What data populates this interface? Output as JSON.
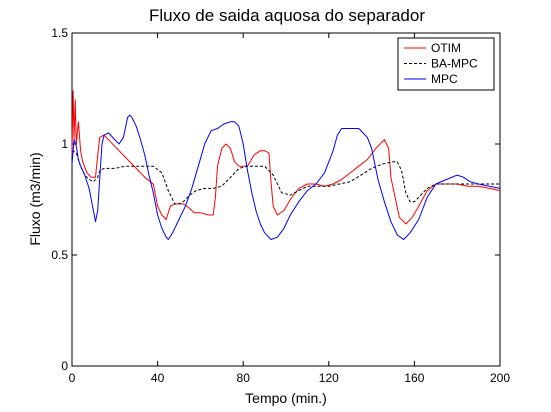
{
  "chart_data": {
    "type": "line",
    "title": "Fluxo de saida aquosa do separador",
    "xlabel": "Tempo (min.)",
    "ylabel": "Fluxo (m3/min)",
    "xlim": [
      0,
      200
    ],
    "ylim": [
      0,
      1.5
    ],
    "xticks": [
      0,
      40,
      80,
      120,
      160,
      200
    ],
    "yticks": [
      0,
      0.5,
      1,
      1.5
    ],
    "xtick_labels": [
      "0",
      "40",
      "80",
      "120",
      "160",
      "200"
    ],
    "ytick_labels": [
      "0",
      "0.5",
      "1",
      "1.5"
    ],
    "grid": false,
    "legend_position": "top-right",
    "series": [
      {
        "name": "OTIM",
        "color": "#ff0000",
        "dash": "solid",
        "points": [
          [
            0,
            0.95
          ],
          [
            0.5,
            1.24
          ],
          [
            1,
            1.02
          ],
          [
            1.5,
            1.2
          ],
          [
            2,
            1.0
          ],
          [
            3,
            1.1
          ],
          [
            4,
            0.97
          ],
          [
            5,
            0.92
          ],
          [
            7,
            0.87
          ],
          [
            9,
            0.85
          ],
          [
            11,
            0.85
          ],
          [
            12,
            0.95
          ],
          [
            13,
            1.03
          ],
          [
            15,
            1.04
          ],
          [
            18,
            1.01
          ],
          [
            22,
            0.97
          ],
          [
            26,
            0.93
          ],
          [
            30,
            0.89
          ],
          [
            34,
            0.85
          ],
          [
            38,
            0.82
          ],
          [
            40,
            0.72
          ],
          [
            42,
            0.68
          ],
          [
            44,
            0.66
          ],
          [
            46,
            0.72
          ],
          [
            48,
            0.73
          ],
          [
            52,
            0.73
          ],
          [
            55,
            0.71
          ],
          [
            57,
            0.69
          ],
          [
            60,
            0.69
          ],
          [
            64,
            0.68
          ],
          [
            66,
            0.68
          ],
          [
            67,
            0.76
          ],
          [
            68,
            0.9
          ],
          [
            70,
            0.98
          ],
          [
            72,
            1.0
          ],
          [
            74,
            0.98
          ],
          [
            76,
            0.92
          ],
          [
            78,
            0.9
          ],
          [
            80,
            0.9
          ],
          [
            82,
            0.9
          ],
          [
            85,
            0.95
          ],
          [
            88,
            0.97
          ],
          [
            90,
            0.97
          ],
          [
            92,
            0.96
          ],
          [
            93,
            0.83
          ],
          [
            94,
            0.72
          ],
          [
            96,
            0.68
          ],
          [
            99,
            0.7
          ],
          [
            102,
            0.75
          ],
          [
            106,
            0.8
          ],
          [
            110,
            0.82
          ],
          [
            114,
            0.82
          ],
          [
            118,
            0.81
          ],
          [
            122,
            0.82
          ],
          [
            126,
            0.84
          ],
          [
            130,
            0.87
          ],
          [
            134,
            0.9
          ],
          [
            138,
            0.93
          ],
          [
            142,
            0.98
          ],
          [
            146,
            1.02
          ],
          [
            148,
            0.98
          ],
          [
            149,
            0.85
          ],
          [
            151,
            0.76
          ],
          [
            153,
            0.67
          ],
          [
            156,
            0.64
          ],
          [
            159,
            0.67
          ],
          [
            162,
            0.72
          ],
          [
            166,
            0.79
          ],
          [
            170,
            0.82
          ],
          [
            175,
            0.82
          ],
          [
            180,
            0.82
          ],
          [
            185,
            0.81
          ],
          [
            190,
            0.81
          ],
          [
            195,
            0.8
          ],
          [
            200,
            0.79
          ]
        ]
      },
      {
        "name": "BA-MPC",
        "color": "#000000",
        "dash": "dashed",
        "points": [
          [
            0,
            0.97
          ],
          [
            2,
            0.96
          ],
          [
            4,
            0.9
          ],
          [
            6,
            0.86
          ],
          [
            8,
            0.84
          ],
          [
            10,
            0.83
          ],
          [
            12,
            0.85
          ],
          [
            13,
            0.88
          ],
          [
            15,
            0.89
          ],
          [
            20,
            0.89
          ],
          [
            25,
            0.9
          ],
          [
            30,
            0.9
          ],
          [
            35,
            0.9
          ],
          [
            38,
            0.9
          ],
          [
            42,
            0.87
          ],
          [
            45,
            0.79
          ],
          [
            48,
            0.73
          ],
          [
            50,
            0.73
          ],
          [
            52,
            0.74
          ],
          [
            55,
            0.77
          ],
          [
            58,
            0.79
          ],
          [
            62,
            0.8
          ],
          [
            66,
            0.8
          ],
          [
            70,
            0.81
          ],
          [
            74,
            0.85
          ],
          [
            78,
            0.89
          ],
          [
            82,
            0.9
          ],
          [
            86,
            0.9
          ],
          [
            90,
            0.9
          ],
          [
            94,
            0.86
          ],
          [
            98,
            0.78
          ],
          [
            102,
            0.77
          ],
          [
            106,
            0.79
          ],
          [
            110,
            0.81
          ],
          [
            115,
            0.81
          ],
          [
            120,
            0.81
          ],
          [
            125,
            0.82
          ],
          [
            130,
            0.83
          ],
          [
            135,
            0.86
          ],
          [
            140,
            0.89
          ],
          [
            145,
            0.91
          ],
          [
            150,
            0.92
          ],
          [
            152,
            0.92
          ],
          [
            154,
            0.88
          ],
          [
            156,
            0.78
          ],
          [
            158,
            0.74
          ],
          [
            160,
            0.74
          ],
          [
            162,
            0.76
          ],
          [
            166,
            0.8
          ],
          [
            170,
            0.82
          ],
          [
            175,
            0.82
          ],
          [
            180,
            0.82
          ],
          [
            190,
            0.82
          ],
          [
            200,
            0.82
          ]
        ]
      },
      {
        "name": "MPC",
        "color": "#0000ff",
        "dash": "solid",
        "points": [
          [
            0,
            0.91
          ],
          [
            1,
            1.02
          ],
          [
            2,
            0.99
          ],
          [
            3,
            0.93
          ],
          [
            4,
            0.9
          ],
          [
            6,
            0.86
          ],
          [
            8,
            0.8
          ],
          [
            10,
            0.7
          ],
          [
            11,
            0.65
          ],
          [
            12,
            0.7
          ],
          [
            13,
            0.85
          ],
          [
            14,
            1.0
          ],
          [
            15,
            1.04
          ],
          [
            17,
            1.05
          ],
          [
            20,
            1.02
          ],
          [
            22,
            1.0
          ],
          [
            24,
            1.03
          ],
          [
            26,
            1.12
          ],
          [
            27,
            1.13
          ],
          [
            28,
            1.12
          ],
          [
            30,
            1.08
          ],
          [
            32,
            1.02
          ],
          [
            34,
            0.95
          ],
          [
            36,
            0.86
          ],
          [
            38,
            0.78
          ],
          [
            40,
            0.68
          ],
          [
            42,
            0.62
          ],
          [
            44,
            0.58
          ],
          [
            45,
            0.57
          ],
          [
            47,
            0.6
          ],
          [
            50,
            0.66
          ],
          [
            53,
            0.72
          ],
          [
            56,
            0.8
          ],
          [
            59,
            0.9
          ],
          [
            62,
            1.0
          ],
          [
            65,
            1.06
          ],
          [
            68,
            1.07
          ],
          [
            71,
            1.09
          ],
          [
            74,
            1.1
          ],
          [
            76,
            1.1
          ],
          [
            78,
            1.08
          ],
          [
            80,
            1.0
          ],
          [
            82,
            0.88
          ],
          [
            84,
            0.78
          ],
          [
            86,
            0.7
          ],
          [
            88,
            0.64
          ],
          [
            90,
            0.6
          ],
          [
            93,
            0.57
          ],
          [
            96,
            0.58
          ],
          [
            99,
            0.62
          ],
          [
            102,
            0.68
          ],
          [
            106,
            0.74
          ],
          [
            110,
            0.79
          ],
          [
            114,
            0.82
          ],
          [
            118,
            0.87
          ],
          [
            122,
            0.97
          ],
          [
            124,
            1.04
          ],
          [
            126,
            1.07
          ],
          [
            130,
            1.07
          ],
          [
            134,
            1.07
          ],
          [
            136,
            1.05
          ],
          [
            138,
            1.03
          ],
          [
            140,
            0.98
          ],
          [
            143,
            0.84
          ],
          [
            146,
            0.74
          ],
          [
            149,
            0.65
          ],
          [
            152,
            0.59
          ],
          [
            155,
            0.57
          ],
          [
            158,
            0.6
          ],
          [
            162,
            0.66
          ],
          [
            166,
            0.76
          ],
          [
            170,
            0.82
          ],
          [
            175,
            0.84
          ],
          [
            180,
            0.86
          ],
          [
            183,
            0.85
          ],
          [
            186,
            0.83
          ],
          [
            190,
            0.82
          ],
          [
            195,
            0.81
          ],
          [
            200,
            0.8
          ]
        ]
      }
    ]
  }
}
